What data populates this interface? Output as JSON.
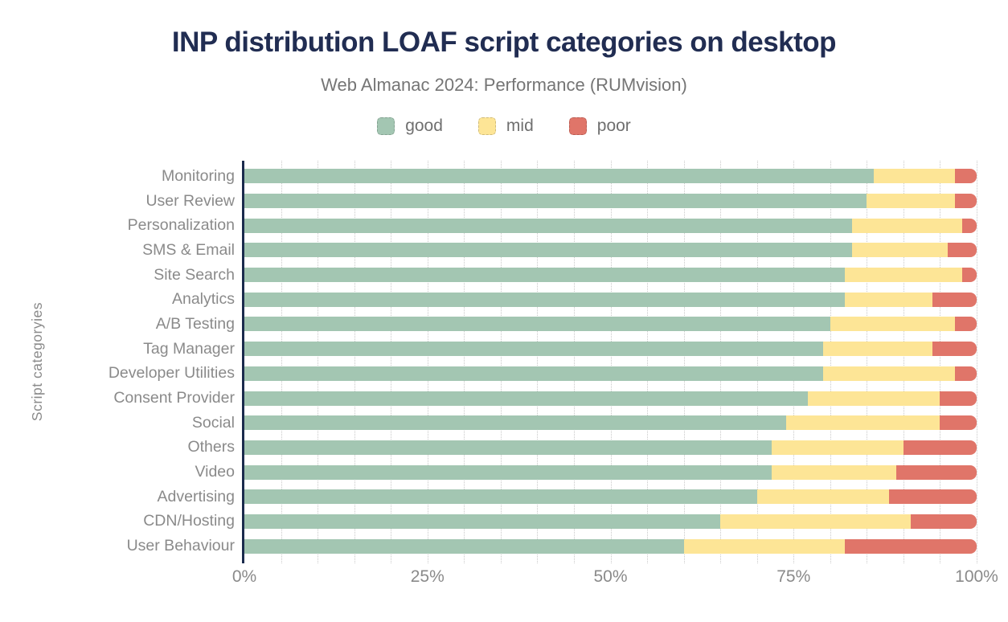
{
  "title": "INP distribution LOAF script categories on desktop",
  "subtitle": "Web Almanac 2024: Performance (RUMvision)",
  "chart_data": {
    "type": "bar",
    "stacked": true,
    "orientation": "horizontal",
    "title": "INP distribution LOAF script categories on desktop",
    "subtitle": "Web Almanac 2024: Performance (RUMvision)",
    "ylabel": "Script categoryies",
    "xlabel": "",
    "xlim": [
      0,
      100
    ],
    "xticks": [
      0,
      25,
      50,
      75,
      100
    ],
    "xtick_labels": [
      "0%",
      "25%",
      "50%",
      "75%",
      "100%"
    ],
    "minor_gridline_step_pct": 5,
    "legend_position": "top",
    "grid": "dotted-vertical",
    "axis_color": "#1b2b4d",
    "categories": [
      "Monitoring",
      "User Review",
      "Personalization",
      "SMS & Email",
      "Site Search",
      "Analytics",
      "A/B Testing",
      "Tag Manager",
      "Developer Utilities",
      "Consent Provider",
      "Social",
      "Others",
      "Video",
      "Advertising",
      "CDN/Hosting",
      "User Behaviour"
    ],
    "series": [
      {
        "name": "good",
        "color": "#A3C6B2",
        "values": [
          86,
          85,
          83,
          83,
          82,
          82,
          80,
          79,
          79,
          77,
          74,
          72,
          72,
          70,
          65,
          60
        ]
      },
      {
        "name": "mid",
        "color": "#FDE596",
        "values": [
          11,
          12,
          15,
          13,
          16,
          12,
          17,
          15,
          18,
          18,
          21,
          18,
          17,
          18,
          26,
          22
        ]
      },
      {
        "name": "poor",
        "color": "#E07569",
        "values": [
          3,
          3,
          2,
          4,
          2,
          6,
          3,
          6,
          3,
          5,
          5,
          10,
          11,
          12,
          9,
          18
        ]
      }
    ],
    "values_unit": "%"
  }
}
